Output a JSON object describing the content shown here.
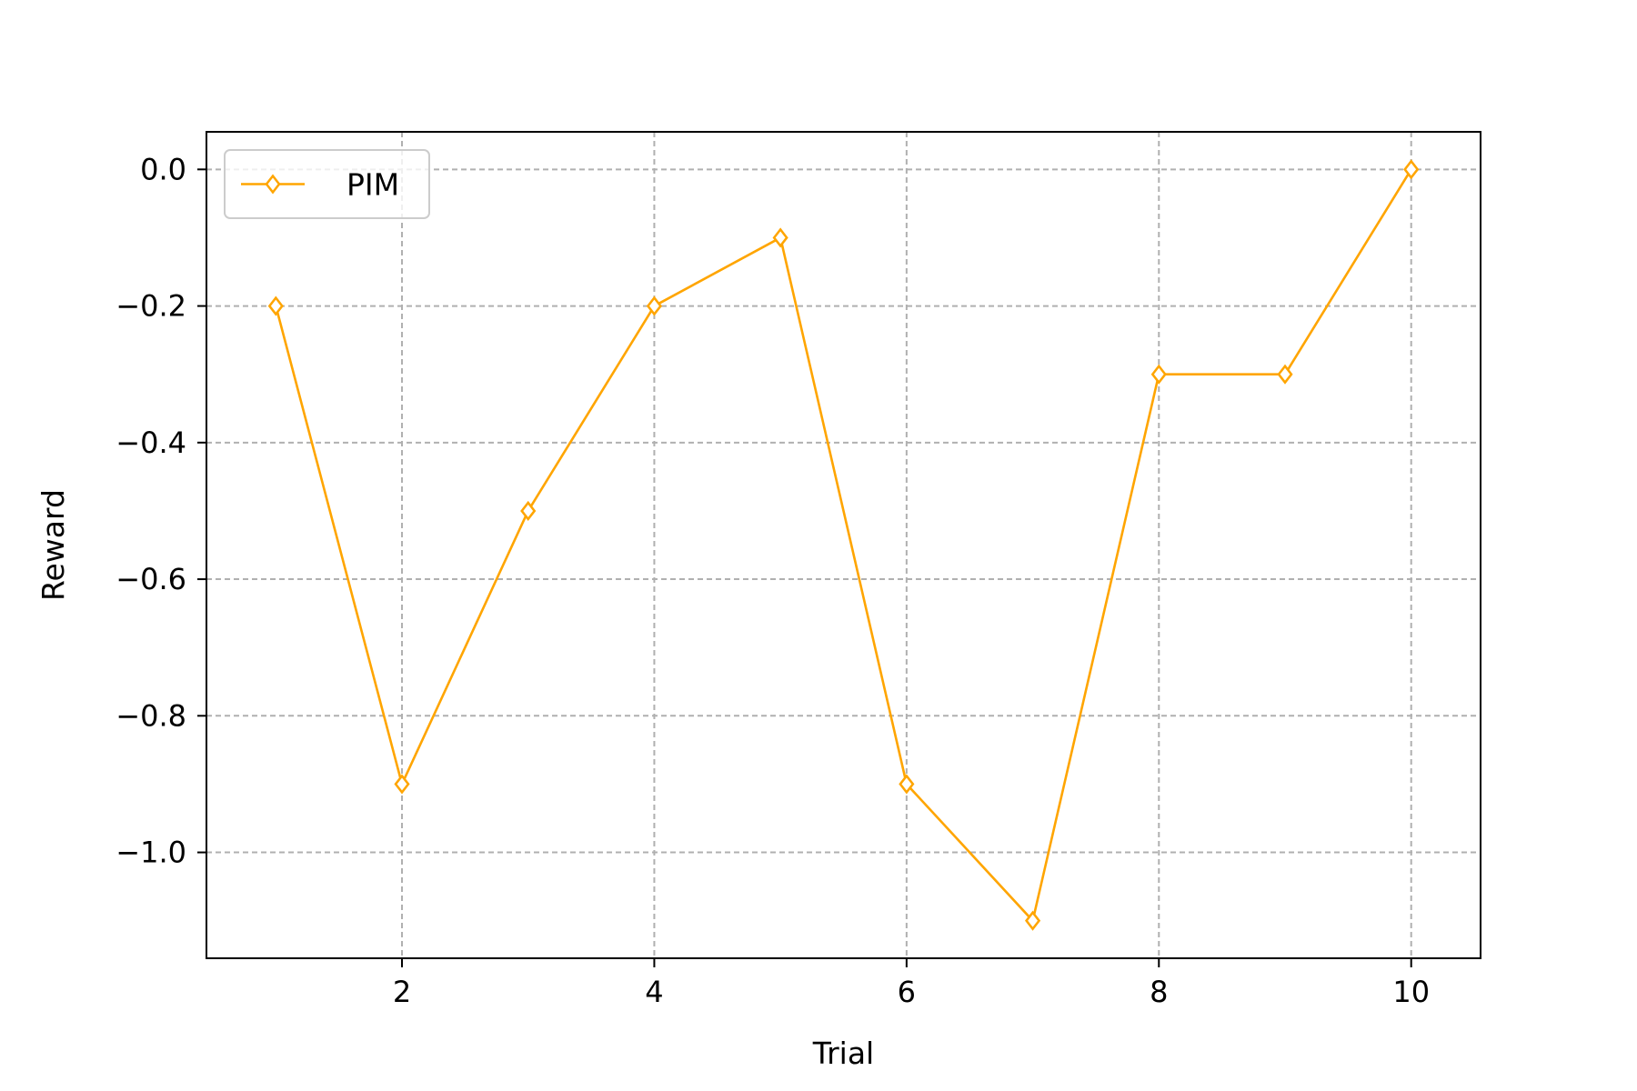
{
  "chart_data": {
    "type": "line",
    "title": "",
    "xlabel": "Trial",
    "ylabel": "Reward",
    "xlim": [
      0.45,
      10.55
    ],
    "ylim": [
      -1.155,
      0.055
    ],
    "xticks": [
      2,
      4,
      6,
      8,
      10
    ],
    "xtick_labels": [
      "2",
      "4",
      "6",
      "8",
      "10"
    ],
    "yticks": [
      0.0,
      -0.2,
      -0.4,
      -0.6,
      -0.8,
      -1.0
    ],
    "ytick_labels": [
      "0.0",
      "−0.2",
      "−0.4",
      "−0.6",
      "−0.8",
      "−1.0"
    ],
    "grid": true,
    "legend_position": "upper left",
    "series": [
      {
        "name": "PIM",
        "color": "#FFA500",
        "marker": "thin-diamond",
        "x": [
          1,
          2,
          3,
          4,
          5,
          6,
          7,
          8,
          9,
          10
        ],
        "y": [
          -0.2,
          -0.9,
          -0.5,
          -0.2,
          -0.1,
          -0.9,
          -1.1,
          -0.3,
          -0.3,
          0.0
        ]
      }
    ]
  }
}
